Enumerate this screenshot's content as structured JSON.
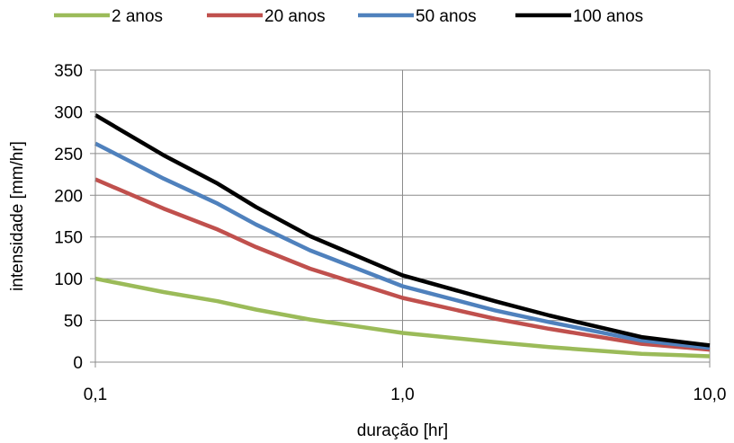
{
  "chart_data": {
    "type": "line",
    "title": "",
    "xlabel": "duração [hr]",
    "ylabel": "intensidade [mm/hr]",
    "x_scale": "log",
    "xlim": [
      0.1,
      10
    ],
    "ylim": [
      0,
      350
    ],
    "x_ticks": [
      {
        "value": 0.1,
        "label": "0,1"
      },
      {
        "value": 1,
        "label": "1,0"
      },
      {
        "value": 10,
        "label": "10,0"
      }
    ],
    "y_ticks": [
      {
        "value": 0,
        "label": "0"
      },
      {
        "value": 50,
        "label": "50"
      },
      {
        "value": 100,
        "label": "100"
      },
      {
        "value": 150,
        "label": "150"
      },
      {
        "value": 200,
        "label": "200"
      },
      {
        "value": 250,
        "label": "250"
      },
      {
        "value": 300,
        "label": "300"
      },
      {
        "value": 350,
        "label": "350"
      }
    ],
    "grid": true,
    "legend_position": "top",
    "series": [
      {
        "name": "2 anos",
        "color": "#9BBB59",
        "x": [
          0.1,
          0.1667,
          0.25,
          0.3333,
          0.5,
          1,
          2,
          3,
          6,
          10
        ],
        "y": [
          100,
          84,
          73,
          63,
          51,
          35,
          24,
          18,
          10,
          7
        ]
      },
      {
        "name": "20 anos",
        "color": "#C0504D",
        "x": [
          0.1,
          0.1667,
          0.25,
          0.3333,
          0.5,
          1,
          2,
          3,
          6,
          10
        ],
        "y": [
          219,
          184,
          159,
          138,
          112,
          77,
          52,
          40,
          22,
          15
        ]
      },
      {
        "name": "50 anos",
        "color": "#4F81BD",
        "x": [
          0.1,
          0.1667,
          0.25,
          0.3333,
          0.5,
          1,
          2,
          3,
          6,
          10
        ],
        "y": [
          262,
          220,
          190,
          165,
          134,
          91,
          62,
          48,
          26,
          17
        ]
      },
      {
        "name": "100 anos",
        "color": "#000000",
        "x": [
          0.1,
          0.1667,
          0.25,
          0.3333,
          0.5,
          1,
          2,
          3,
          6,
          10
        ],
        "y": [
          296,
          248,
          214,
          186,
          151,
          104,
          73,
          56,
          30,
          20
        ]
      }
    ]
  }
}
